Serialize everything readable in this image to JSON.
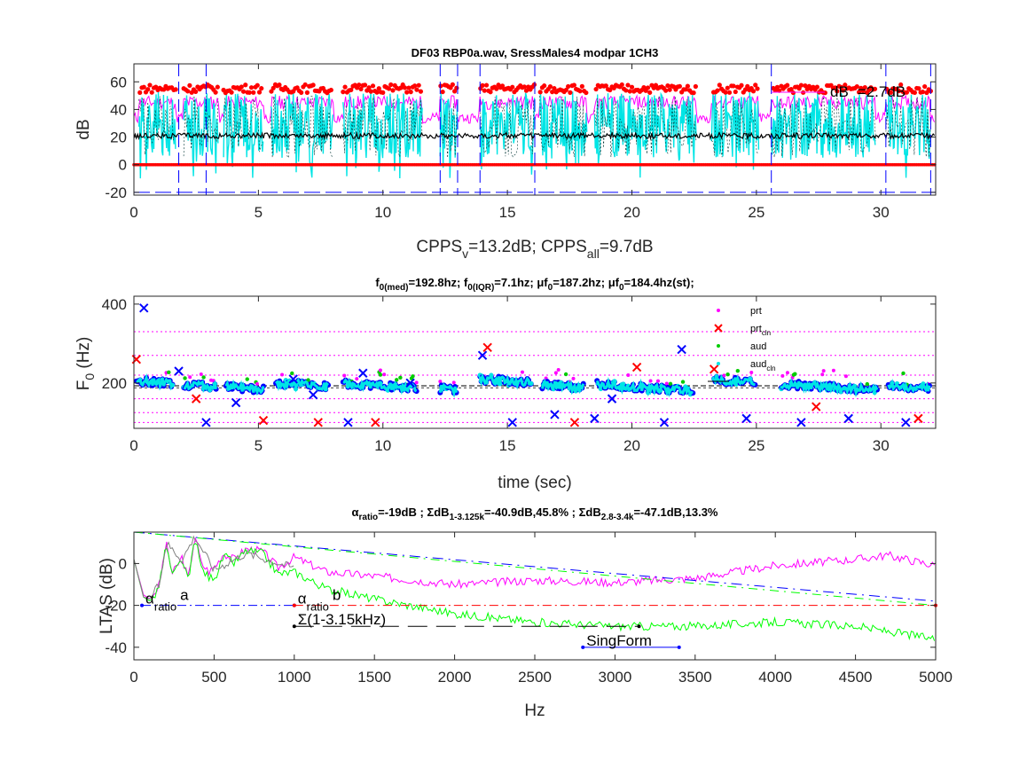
{
  "chart_data": [
    {
      "type": "line",
      "title": "DF03 RBP0a.wav,  SressMales4 modpar 1CH3",
      "xlabel": "",
      "ylabel": "dB",
      "xlim": [
        0,
        32.2
      ],
      "ylim": [
        -22,
        73
      ],
      "xticks": [
        "0",
        "5",
        "10",
        "15",
        "20",
        "25",
        "30"
      ],
      "xtick_values": [
        0,
        5,
        10,
        15,
        20,
        25,
        30
      ],
      "yticks": [
        "-20",
        "0",
        "20",
        "40",
        "60"
      ],
      "ytick_values": [
        -20,
        0,
        20,
        40,
        60
      ],
      "below_title": {
        "pre": "CPPS",
        "sub1": "v",
        "mid": "=13.2dB; CPPS",
        "sub2": "all",
        "post": "=9.7dB"
      },
      "annotation": "dB",
      "annotation2": "=2.7dB",
      "voiced_segments": [
        [
          0.2,
          1.7
        ],
        [
          2.0,
          3.4
        ],
        [
          3.6,
          5.2
        ],
        [
          5.5,
          8.0
        ],
        [
          8.4,
          11.6
        ],
        [
          12.3,
          13.0
        ],
        [
          13.9,
          16.1
        ],
        [
          16.3,
          18.2
        ],
        [
          18.5,
          22.6
        ],
        [
          23.2,
          25.1
        ],
        [
          25.6,
          29.8
        ],
        [
          30.2,
          32.0
        ]
      ],
      "series": [
        {
          "color": "#ff0000",
          "level_db": 55
        },
        {
          "color": "#ff00ff",
          "level_db": 45
        },
        {
          "color": "#00e5e5",
          "level_db": 25
        },
        {
          "color": "#000000",
          "level_db": 21
        },
        {
          "color": "#0000ff",
          "level_db": -20
        }
      ]
    },
    {
      "type": "scatter",
      "title_parts": [
        {
          "t": "f",
          "s": false
        },
        {
          "t": "0(med)",
          "s": true
        },
        {
          "t": "=192.8hz; f",
          "s": false
        },
        {
          "t": "0(IQR)",
          "s": true
        },
        {
          "t": "=7.1hz; μf",
          "s": false
        },
        {
          "t": "0",
          "s": true
        },
        {
          "t": "=187.2hz; μf",
          "s": false
        },
        {
          "t": "0",
          "s": true
        },
        {
          "t": "=184.4hz(st);",
          "s": false
        }
      ],
      "xlabel": "time (sec)",
      "ylabel_main": "F",
      "ylabel_sub": "0",
      "ylabel_post": " (Hz)",
      "xlim": [
        0,
        32.2
      ],
      "ylim": [
        85,
        420
      ],
      "xticks": [
        "0",
        "5",
        "10",
        "15",
        "20",
        "25",
        "30"
      ],
      "xtick_values": [
        0,
        5,
        10,
        15,
        20,
        25,
        30
      ],
      "yticks": [
        "200",
        "400"
      ],
      "ytick_values": [
        200,
        400
      ],
      "f0_median": 192.8,
      "ref_lines_hz": [
        100,
        125,
        160,
        220,
        270,
        330
      ],
      "legend": [
        {
          "label": "prt",
          "sub": "",
          "marker": "dot",
          "color": "#ff00ff"
        },
        {
          "label": "prt",
          "sub": "cln",
          "marker": "x",
          "color": "#ff0000"
        },
        {
          "label": "aud",
          "sub": "",
          "marker": "dot",
          "color": "#00cc00"
        },
        {
          "label": "aud",
          "sub": "cln",
          "marker": "dot",
          "color": "#00e5e5"
        },
        {
          "label": "",
          "sub": "",
          "marker": "line",
          "color": "#000000"
        }
      ],
      "voiced_segments": [
        [
          0.1,
          1.6
        ],
        [
          2.0,
          3.3
        ],
        [
          3.7,
          5.2
        ],
        [
          5.7,
          7.8
        ],
        [
          8.4,
          11.4
        ],
        [
          12.3,
          13.0
        ],
        [
          13.9,
          16.0
        ],
        [
          16.4,
          18.1
        ],
        [
          18.6,
          22.5
        ],
        [
          23.3,
          25.0
        ],
        [
          26.0,
          29.9
        ],
        [
          30.3,
          32.0
        ]
      ],
      "segment_f0_hz": [
        205,
        195,
        190,
        200,
        198,
        185,
        210,
        195,
        196,
        208,
        197,
        192
      ],
      "outliers": [
        [
          0.1,
          260
        ],
        [
          0.4,
          390
        ],
        [
          1.8,
          230
        ],
        [
          2.5,
          160
        ],
        [
          2.9,
          100
        ],
        [
          4.1,
          150
        ],
        [
          5.2,
          105
        ],
        [
          6.4,
          210
        ],
        [
          7.2,
          170
        ],
        [
          7.4,
          100
        ],
        [
          8.6,
          100
        ],
        [
          9.2,
          225
        ],
        [
          9.7,
          100
        ],
        [
          11.1,
          200
        ],
        [
          14.0,
          270
        ],
        [
          14.2,
          290
        ],
        [
          15.2,
          100
        ],
        [
          16.9,
          120
        ],
        [
          17.7,
          100
        ],
        [
          18.5,
          110
        ],
        [
          19.2,
          160
        ],
        [
          20.2,
          240
        ],
        [
          21.3,
          100
        ],
        [
          22.0,
          285
        ],
        [
          23.3,
          235
        ],
        [
          24.6,
          110
        ],
        [
          26.8,
          100
        ],
        [
          27.4,
          140
        ],
        [
          28.7,
          110
        ],
        [
          31.0,
          100
        ],
        [
          31.5,
          110
        ]
      ]
    },
    {
      "type": "line",
      "title_parts": [
        {
          "t": "α",
          "s": false
        },
        {
          "t": "ratio",
          "s": true
        },
        {
          "t": "=-19dB ;  ΣdB",
          "s": false
        },
        {
          "t": "1-3.125k",
          "s": true
        },
        {
          "t": "=-40.9dB,45.8% ;  ΣdB",
          "s": false
        },
        {
          "t": "2.8-3.4k",
          "s": true
        },
        {
          "t": "=-47.1dB,13.3%",
          "s": false
        }
      ],
      "xlabel": "Hz",
      "ylabel": "LTAS (dB)",
      "xlim": [
        0,
        5000
      ],
      "ylim": [
        -46,
        15
      ],
      "xticks": [
        "0",
        "500",
        "1000",
        "1500",
        "2000",
        "2500",
        "3000",
        "3500",
        "4000",
        "4500",
        "5000"
      ],
      "xtick_values": [
        0,
        500,
        1000,
        1500,
        2000,
        2500,
        3000,
        3500,
        4000,
        4500,
        5000
      ],
      "yticks": [
        "-40",
        "-20",
        "0"
      ],
      "ytick_values": [
        -40,
        -20,
        0
      ],
      "series": [
        {
          "color": "#ff00ff",
          "x": [
            0,
            60,
            100,
            130,
            160,
            200,
            240,
            300,
            340,
            380,
            420,
            470,
            520,
            560,
            620,
            700,
            800,
            900,
            1000,
            1200,
            1500,
            2000,
            2500,
            3000,
            3500,
            4000,
            4500,
            4700,
            5000
          ],
          "y": [
            2,
            -15,
            -17,
            -14,
            -10,
            10,
            -5,
            3,
            -8,
            14,
            0,
            -4,
            0,
            5,
            2,
            7,
            6,
            -2,
            3,
            -4,
            -6,
            -10,
            -8,
            -9,
            -7,
            -1,
            2,
            4,
            -1
          ]
        },
        {
          "color": "#00ff00",
          "x": [
            0,
            60,
            100,
            130,
            160,
            200,
            240,
            300,
            340,
            380,
            420,
            470,
            520,
            560,
            620,
            700,
            800,
            900,
            1000,
            1200,
            1500,
            2000,
            2500,
            3000,
            3500,
            4000,
            4500,
            5000
          ],
          "y": [
            2,
            -16,
            -18,
            -15,
            -10,
            9,
            -6,
            2,
            -9,
            13,
            -2,
            -7,
            -5,
            4,
            0,
            6,
            5,
            -5,
            -4,
            -12,
            -17,
            -24,
            -28,
            -30,
            -30,
            -28,
            -30,
            -36
          ]
        },
        {
          "color": "#808080",
          "x": [
            0,
            60,
            100,
            160,
            200,
            300,
            380,
            500,
            700,
            1000
          ],
          "y": [
            2,
            -16,
            -17,
            -10,
            10,
            2,
            13,
            -3,
            5,
            -2
          ]
        }
      ],
      "reg_lines": [
        {
          "color": "#0000ff",
          "dash": "12,6,2,6",
          "x": [
            0,
            5000
          ],
          "y": [
            15,
            -18
          ]
        },
        {
          "color": "#00ff00",
          "dash": "10,6,2,6",
          "x": [
            0,
            5000
          ],
          "y": [
            15,
            -20
          ]
        }
      ],
      "h_lines": [
        {
          "color": "#0000ff",
          "dash": "10,4,2,4",
          "x": [
            50,
            1000
          ],
          "y": -20
        },
        {
          "color": "#ff0000",
          "dash": "10,4,2,4",
          "x": [
            1000,
            5000
          ],
          "y": -20
        },
        {
          "color": "#000000",
          "dash": "22,10",
          "x": [
            1000,
            3150
          ],
          "y": -30
        },
        {
          "color": "#0000ff",
          "dash": "",
          "x": [
            2800,
            3400
          ],
          "y": -40
        }
      ],
      "annotations": [
        {
          "id": "alpha1",
          "x": 50,
          "y": -20,
          "pre": "α",
          "sub": "ratio",
          "post": "a"
        },
        {
          "id": "alpha2",
          "x": 1000,
          "y": -20,
          "pre": "α",
          "sub": "ratio",
          "post": "b"
        },
        {
          "id": "sigma",
          "x": 1000,
          "y": -30,
          "pre": "Σ(1-3.15kHz)",
          "sub": "",
          "post": ""
        },
        {
          "id": "singform",
          "x": 2800,
          "y": -40,
          "pre": "SingForm",
          "sub": "",
          "post": ""
        }
      ]
    }
  ]
}
